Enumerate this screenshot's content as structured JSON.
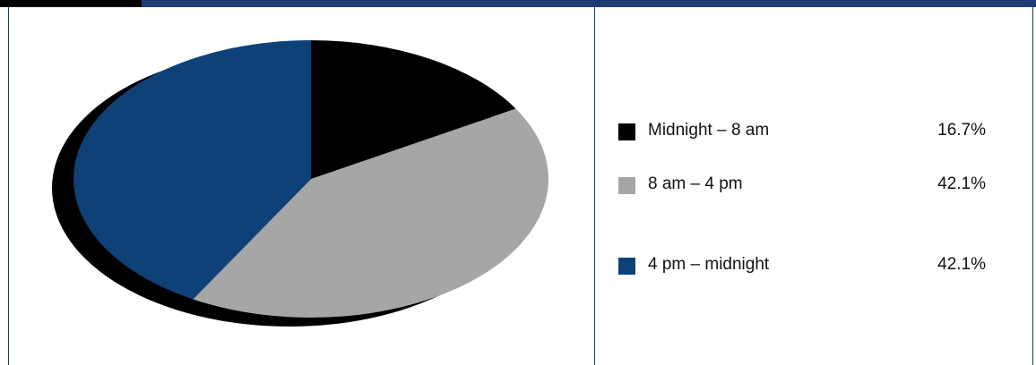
{
  "chart_data": {
    "type": "pie",
    "title": "",
    "slices": [
      {
        "label": "Midnight – 8 am",
        "value": 16.7,
        "value_label": "16.7%",
        "color": "#000000"
      },
      {
        "label": "8 am – 4 pm",
        "value": 42.1,
        "value_label": "42.1%",
        "color": "#a6a6a6"
      },
      {
        "label": "4 pm – midnight",
        "value": 42.1,
        "value_label": "42.1%",
        "color": "#0e4178"
      }
    ],
    "legend_position": "right",
    "style": "3d-tilted"
  },
  "colors": {
    "frame": "#1b3d73",
    "top_tab": "#000000",
    "shadow": "#000000"
  }
}
